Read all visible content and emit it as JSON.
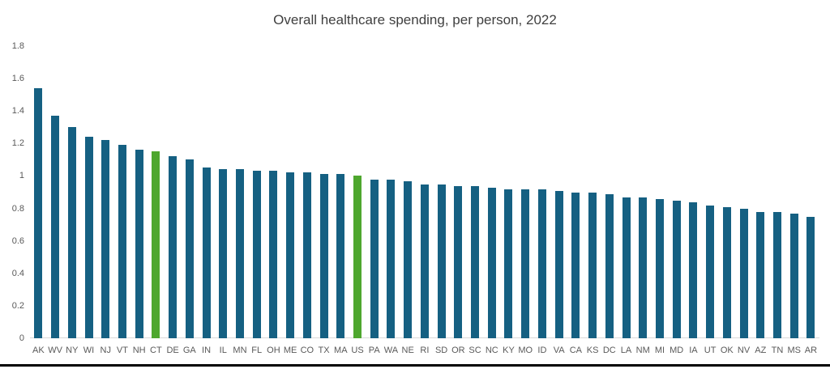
{
  "chart_data": {
    "type": "bar",
    "title": "Overall healthcare spending, per person, 2022",
    "xlabel": "",
    "ylabel": "",
    "categories": [
      "AK",
      "WV",
      "NY",
      "WI",
      "NJ",
      "VT",
      "NH",
      "CT",
      "DE",
      "GA",
      "IN",
      "IL",
      "MN",
      "FL",
      "OH",
      "ME",
      "CO",
      "TX",
      "MA",
      "US",
      "PA",
      "WA",
      "NE",
      "RI",
      "SD",
      "OR",
      "SC",
      "NC",
      "KY",
      "MO",
      "ID",
      "VA",
      "CA",
      "KS",
      "DC",
      "LA",
      "NM",
      "MI",
      "MD",
      "IA",
      "UT",
      "OK",
      "NV",
      "AZ",
      "TN",
      "MS",
      "AR"
    ],
    "values": [
      1.54,
      1.37,
      1.3,
      1.24,
      1.22,
      1.19,
      1.16,
      1.15,
      1.12,
      1.1,
      1.05,
      1.04,
      1.04,
      1.03,
      1.03,
      1.02,
      1.02,
      1.01,
      1.01,
      1.0,
      0.98,
      0.98,
      0.97,
      0.95,
      0.95,
      0.94,
      0.94,
      0.93,
      0.92,
      0.92,
      0.92,
      0.91,
      0.9,
      0.9,
      0.89,
      0.87,
      0.87,
      0.86,
      0.85,
      0.84,
      0.82,
      0.81,
      0.8,
      0.78,
      0.78,
      0.77,
      0.75
    ],
    "highlighted_categories": [
      "CT",
      "US"
    ],
    "ylim": [
      0,
      1.8
    ],
    "ytick_labels": [
      "0",
      "0.2",
      "0.4",
      "0.6",
      "0.8",
      "1",
      "1.2",
      "1.4",
      "1.6",
      "1.8"
    ],
    "grid": false,
    "legend_position": "none",
    "colors": {
      "bar": "#156082",
      "highlight": "#4EA72E",
      "axis_line": "#d9d9d9",
      "tick_label": "#595959",
      "title": "#3f3f3f",
      "bottom_border": "#000000"
    }
  }
}
